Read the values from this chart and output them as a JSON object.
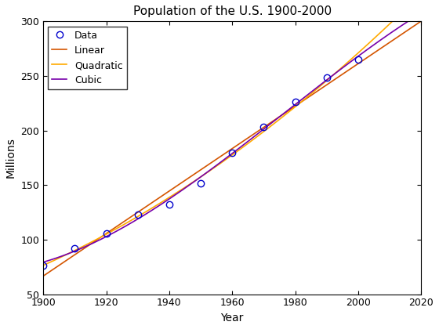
{
  "title": "Population of the U.S. 1900-2000",
  "xlabel": "Year",
  "ylabel": "Millions",
  "xlim": [
    1900,
    2020
  ],
  "ylim": [
    50,
    300
  ],
  "xticks": [
    1900,
    1920,
    1940,
    1960,
    1980,
    2000,
    2020
  ],
  "yticks": [
    50,
    100,
    150,
    200,
    250,
    300
  ],
  "data_years": [
    1900,
    1910,
    1920,
    1930,
    1940,
    1950,
    1960,
    1970,
    1980,
    1990,
    2000
  ],
  "data_pop": [
    76.2,
    92.2,
    106.0,
    123.2,
    132.2,
    151.3,
    179.3,
    203.3,
    226.5,
    248.7,
    265.2
  ],
  "data_color": "#0000cc",
  "linear_color": "#d45500",
  "quadratic_color": "#ffaa00",
  "cubic_color": "#7700aa",
  "line_width": 1.2,
  "marker_size": 6,
  "title_fontsize": 11,
  "label_fontsize": 10,
  "tick_fontsize": 9,
  "legend_fontsize": 9
}
